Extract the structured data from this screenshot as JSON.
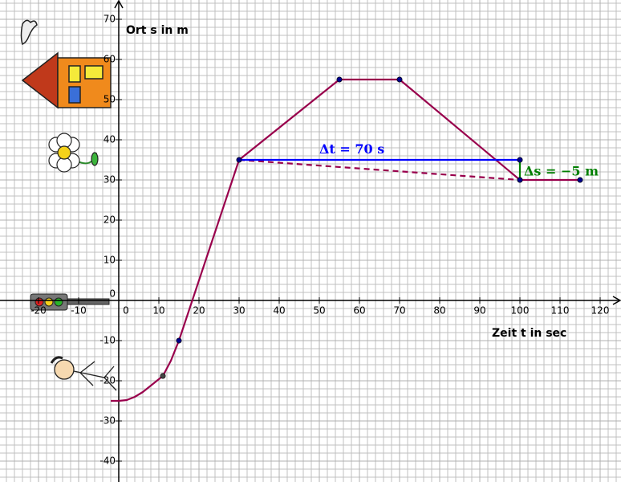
{
  "chart_data": {
    "type": "line",
    "y_axis_label": "Ort s in m",
    "x_axis_label": "Zeit t in sec",
    "xlim": [
      -29.6,
      125.2
    ],
    "ylim": [
      -45.2,
      74.8
    ],
    "xticks": [
      -20,
      -10,
      0,
      10,
      20,
      30,
      40,
      50,
      60,
      70,
      80,
      90,
      100,
      110,
      120
    ],
    "yticks": [
      -40,
      -30,
      -20,
      -10,
      0,
      10,
      20,
      30,
      40,
      50,
      60,
      70
    ],
    "grid": true,
    "series": [
      {
        "color": "#99004c",
        "x": [
          -2,
          0,
          2,
          4,
          6,
          8,
          10,
          11,
          13,
          15,
          30,
          55,
          70,
          100,
          115
        ],
        "values": [
          -25,
          -25,
          -24.8,
          -24,
          -22.8,
          -21.2,
          -19.6,
          -18.8,
          -15,
          -10,
          35,
          55,
          55,
          30,
          30
        ]
      },
      {
        "color": "#99004c",
        "dashed": true,
        "x": [
          30,
          100
        ],
        "values": [
          35,
          30
        ]
      },
      {
        "color": "#0000ff",
        "x": [
          30,
          100
        ],
        "values": [
          35,
          35
        ]
      },
      {
        "color": "#007f00",
        "x": [
          100,
          100
        ],
        "values": [
          35,
          30
        ]
      },
      {
        "color": "#00008b",
        "markers_only": true,
        "x": [
          15,
          30,
          55,
          70,
          100,
          100,
          115
        ],
        "values": [
          -10,
          35,
          55,
          55,
          35,
          30,
          30
        ]
      },
      {
        "color": "#444444",
        "markers_only": true,
        "x": [
          11
        ],
        "values": [
          -18.8
        ]
      }
    ],
    "annotations": [
      {
        "text": "Δt = 70 s",
        "color": "#0000ff"
      },
      {
        "text": "Δs = −5 m",
        "color": "#007f00"
      }
    ]
  }
}
